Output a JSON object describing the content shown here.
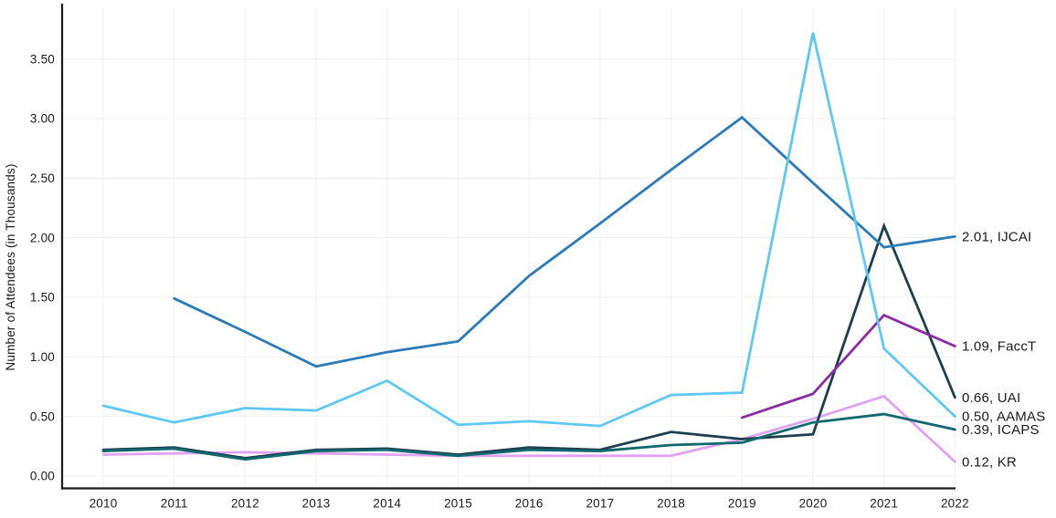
{
  "chart_data": {
    "type": "line",
    "title": "",
    "xlabel": "",
    "ylabel": "Number of Attendees (in Thousands)",
    "x_tick_labels": [
      "2010",
      "2011",
      "2012",
      "2013",
      "2014",
      "2015",
      "2016",
      "2017",
      "2018",
      "2019",
      "2020",
      "2021",
      "2022"
    ],
    "y_tick_labels": [
      "0.00",
      "0.50",
      "1.00",
      "1.50",
      "2.00",
      "2.50",
      "3.00",
      "3.50"
    ],
    "y_tick_values": [
      0,
      0.5,
      1.0,
      1.5,
      2.0,
      2.5,
      3.0,
      3.5
    ],
    "ylim": [
      0,
      3.95
    ],
    "grid": "both",
    "legend_position": "end-of-line-labels",
    "x": [
      2010,
      2011,
      2012,
      2013,
      2014,
      2015,
      2016,
      2017,
      2018,
      2019,
      2020,
      2021,
      2022
    ],
    "series": [
      {
        "name": "KR",
        "color": "#dfa3f1",
        "end_label": "0.12, KR",
        "end_value": 0.12,
        "values": [
          0.18,
          0.19,
          0.2,
          0.19,
          0.18,
          0.17,
          0.17,
          0.17,
          0.17,
          0.31,
          0.48,
          0.67,
          0.12
        ]
      },
      {
        "name": "UAI",
        "color": "#1c3e4e",
        "end_label": "0.66, UAI",
        "end_value": 0.66,
        "values": [
          0.22,
          0.24,
          0.15,
          0.22,
          0.23,
          0.18,
          0.24,
          0.22,
          0.37,
          0.31,
          0.35,
          2.1,
          0.66
        ]
      },
      {
        "name": "ICAPS",
        "color": "#12686f",
        "end_label": "0.39, ICAPS",
        "end_value": 0.39,
        "values": [
          0.21,
          0.23,
          0.14,
          0.21,
          0.22,
          0.17,
          0.22,
          0.21,
          0.26,
          0.28,
          0.45,
          0.52,
          0.39
        ]
      },
      {
        "name": "FaccT",
        "color": "#8a2da3",
        "end_label": "1.09, FaccT",
        "end_value": 1.09,
        "values": [
          null,
          null,
          null,
          null,
          null,
          null,
          null,
          null,
          null,
          0.49,
          0.69,
          1.35,
          1.09
        ]
      },
      {
        "name": "IJCAI",
        "color": "#2b7bb9",
        "end_label": "2.01, IJCAI",
        "end_value": 2.01,
        "values": [
          null,
          1.49,
          1.21,
          0.92,
          1.04,
          1.13,
          1.68,
          2.12,
          2.57,
          3.01,
          2.46,
          1.92,
          2.01
        ]
      },
      {
        "name": "AAMAS",
        "color": "#5ec8f2",
        "end_label": "0.50, AAMAS",
        "end_value": 0.5,
        "values": [
          0.59,
          0.45,
          0.57,
          0.55,
          0.8,
          0.43,
          0.46,
          0.42,
          0.68,
          0.7,
          3.72,
          1.07,
          0.5
        ]
      }
    ]
  }
}
